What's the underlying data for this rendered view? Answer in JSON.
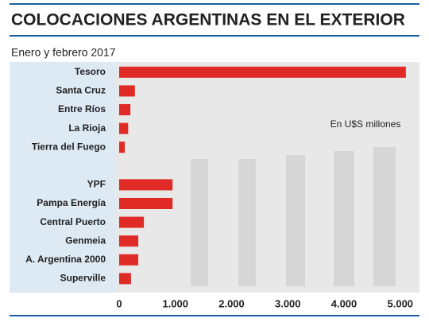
{
  "chart_data": {
    "type": "bar",
    "orientation": "horizontal",
    "title": "COLOCACIONES ARGENTINAS EN EL EXTERIOR",
    "subtitle": "Enero y febrero 2017",
    "annotation": "En U$S millones",
    "categories": [
      "Tesoro",
      "Santa Cruz",
      "Entre Ríos",
      "La Rioja",
      "Tierra del Fuego",
      null,
      "YPF",
      "Pampa Energía",
      "Central Puerto",
      "Genmeia",
      "A. Argentina 2000",
      "Superville"
    ],
    "values": [
      5100,
      280,
      200,
      160,
      100,
      null,
      950,
      950,
      440,
      340,
      340,
      210
    ],
    "color": "#e02a26",
    "xlim": [
      0,
      5300
    ],
    "xticks": [
      0,
      {
        "value": 1000,
        "label": "1.000"
      },
      {
        "value": 2000,
        "label": "2.000"
      },
      {
        "value": 3000,
        "label": "3.000"
      },
      {
        "value": 4000,
        "label": "4.000"
      },
      {
        "value": 5000,
        "label": "5.000"
      }
    ]
  }
}
